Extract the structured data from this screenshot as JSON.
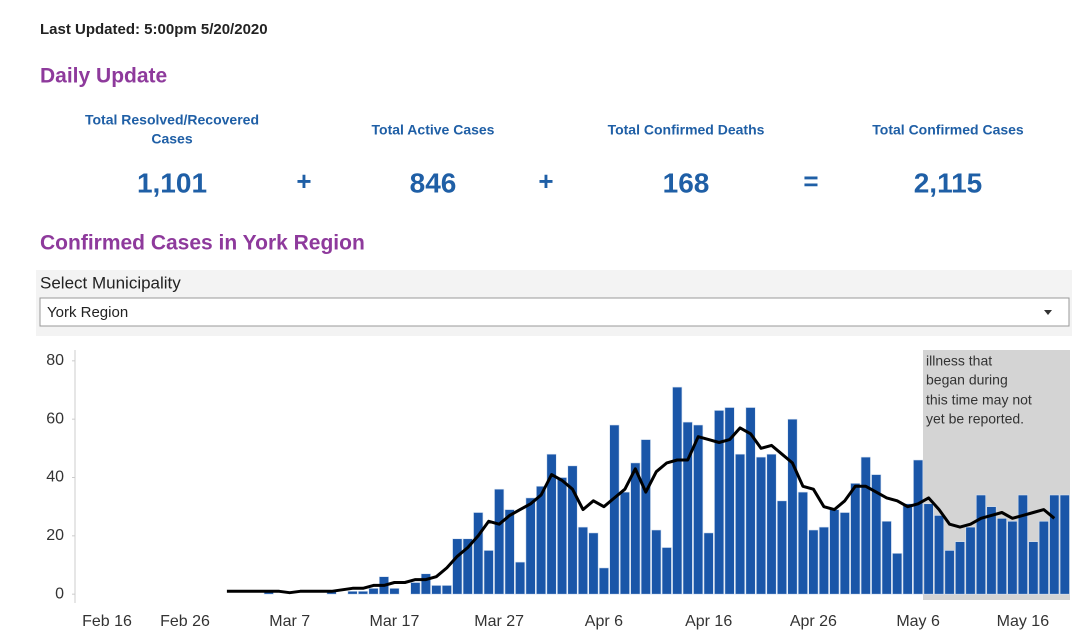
{
  "header": {
    "last_updated": "Last Updated: 5:00pm 5/20/2020",
    "daily_update": "Daily Update",
    "chart_heading": "Confirmed Cases in York Region"
  },
  "stats": [
    {
      "label": [
        "Total Resolved/Recovered",
        "Cases"
      ],
      "value": "1,101"
    },
    {
      "label": [
        "Total Active Cases"
      ],
      "value": "846"
    },
    {
      "label": [
        "Total Confirmed Deaths"
      ],
      "value": "168"
    },
    {
      "label": [
        "Total Confirmed Cases"
      ],
      "value": "2,115"
    }
  ],
  "operators": [
    "+",
    "+",
    "="
  ],
  "filter": {
    "label": "Select Municipality",
    "selected": "York Region"
  },
  "chart_data": {
    "type": "bar",
    "categories": [
      "Feb 16",
      null,
      null,
      null,
      null,
      null,
      null,
      null,
      null,
      null,
      "Feb 26",
      null,
      null,
      null,
      null,
      null,
      null,
      null,
      null,
      null,
      "Mar 7",
      null,
      null,
      null,
      null,
      null,
      null,
      null,
      null,
      null,
      "Mar 17",
      null,
      null,
      null,
      null,
      null,
      null,
      null,
      null,
      null,
      "Mar 27",
      null,
      null,
      null,
      null,
      null,
      null,
      null,
      null,
      null,
      "Apr 6",
      null,
      null,
      null,
      null,
      null,
      null,
      null,
      null,
      null,
      "Apr 16",
      null,
      null,
      null,
      null,
      null,
      null,
      null,
      null,
      null,
      "Apr 26",
      null,
      null,
      null,
      null,
      null,
      null,
      null,
      null,
      null,
      "May 6",
      null,
      null,
      null,
      null,
      null,
      null,
      null,
      null,
      null,
      "May 16",
      null,
      null,
      null,
      null
    ],
    "series": [
      {
        "type": "bar",
        "color": "#1a56a8",
        "values": [
          0,
          0,
          0,
          0,
          0,
          0,
          0,
          0,
          0,
          0,
          0,
          0,
          0,
          0,
          0,
          0,
          0,
          0,
          1,
          0,
          0,
          0,
          0,
          0,
          1,
          0,
          1,
          1,
          2,
          6,
          2,
          0,
          4,
          7,
          3,
          3,
          19,
          19,
          28,
          15,
          36,
          29,
          11,
          33,
          37,
          48,
          40,
          44,
          23,
          21,
          9,
          58,
          35,
          45,
          53,
          22,
          16,
          71,
          59,
          58,
          21,
          63,
          64,
          48,
          64,
          47,
          48,
          32,
          60,
          35,
          22,
          23,
          29,
          28,
          38,
          47,
          41,
          25,
          14,
          31,
          46,
          31,
          27,
          15,
          18,
          23,
          34,
          30,
          26,
          25,
          34,
          18,
          25,
          34,
          34
        ]
      },
      {
        "type": "line",
        "color": "#000000",
        "values": [
          null,
          null,
          null,
          null,
          null,
          null,
          null,
          null,
          null,
          null,
          null,
          null,
          null,
          null,
          1,
          1,
          1,
          1,
          1,
          1,
          0.5,
          1,
          1,
          1,
          1,
          1.5,
          2,
          2,
          3,
          3,
          4,
          4,
          5,
          5,
          6,
          9,
          13,
          16,
          20,
          25,
          24,
          27,
          29,
          31,
          34,
          41,
          39,
          36,
          29,
          32,
          30,
          33,
          36,
          43,
          35,
          42,
          45,
          46,
          46,
          54,
          53,
          52,
          53,
          57,
          55,
          50,
          51,
          48,
          45,
          37,
          36,
          30,
          29,
          32,
          37,
          37,
          35,
          33,
          32,
          30,
          31,
          33,
          29,
          24,
          23,
          24,
          26,
          27,
          28,
          26,
          27,
          28,
          29,
          26,
          null
        ]
      }
    ],
    "ylim": [
      -2,
      82
    ],
    "yticks": [
      0,
      20,
      40,
      60,
      80
    ],
    "annotation": [
      "illness that",
      "began during",
      "this time may not",
      "yet be reported."
    ]
  }
}
